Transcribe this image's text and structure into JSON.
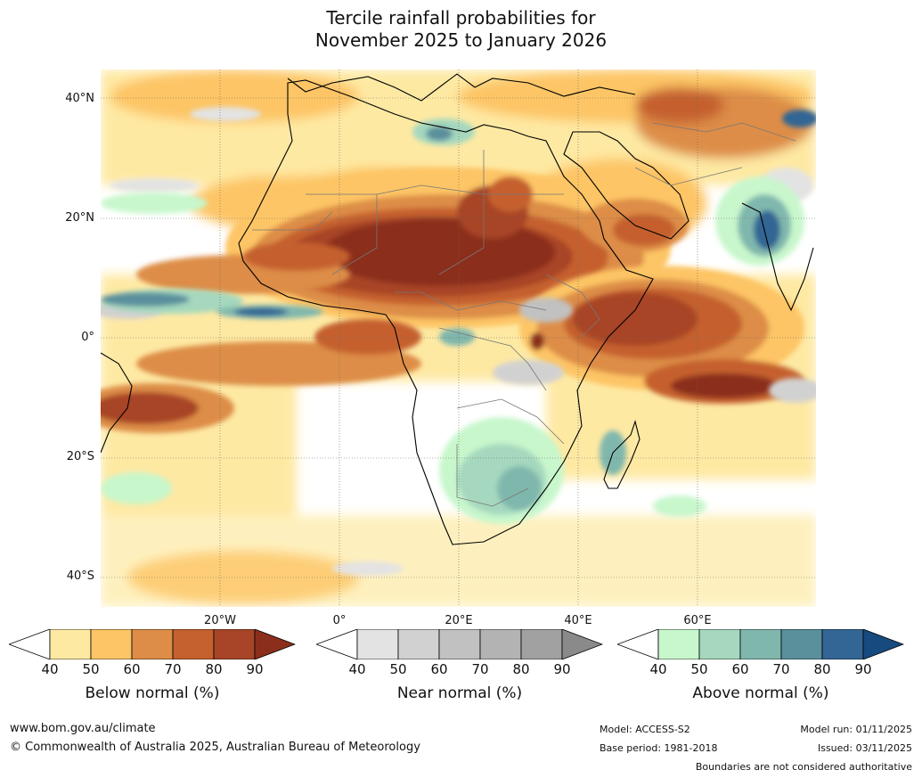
{
  "title": {
    "line1": "Tercile rainfall probabilities for",
    "line2": "November 2025 to January 2026"
  },
  "axes": {
    "lat_labels": [
      "40°N",
      "20°N",
      "0°",
      "20°S",
      "40°S"
    ],
    "lon_labels": [
      "20°W",
      "0°",
      "20°E",
      "40°E",
      "60°E"
    ]
  },
  "legends": [
    {
      "title": "Below normal (%)",
      "ticks": [
        "40",
        "50",
        "60",
        "70",
        "80",
        "90"
      ],
      "colors": [
        "#ffffff",
        "#fee9a3",
        "#fdc565",
        "#dd8d47",
        "#c5602f",
        "#a84528",
        "#8b2e1c"
      ]
    },
    {
      "title": "Near normal (%)",
      "ticks": [
        "40",
        "50",
        "60",
        "70",
        "80",
        "90"
      ],
      "colors": [
        "#ffffff",
        "#e3e3e3",
        "#d1d1d1",
        "#c1c1c1",
        "#b3b3b3",
        "#a1a1a1",
        "#8a8a8a"
      ]
    },
    {
      "title": "Above normal (%)",
      "ticks": [
        "40",
        "50",
        "60",
        "70",
        "80",
        "90"
      ],
      "colors": [
        "#ffffff",
        "#c8f7cc",
        "#a5d8be",
        "#80b7ad",
        "#5a8f9c",
        "#336694",
        "#174a7e"
      ]
    }
  ],
  "footer": {
    "website": "www.bom.gov.au/climate",
    "copyright": "© Commonwealth of Australia 2025, Australian Bureau of Meteorology",
    "model": "Model: ACCESS-S2",
    "base_period": "Base period: 1981-2018",
    "model_run": "Model run: 01/11/2025",
    "issued": "Issued: 03/11/2025",
    "disclaimer": "Boundaries are not considered authoritative"
  }
}
